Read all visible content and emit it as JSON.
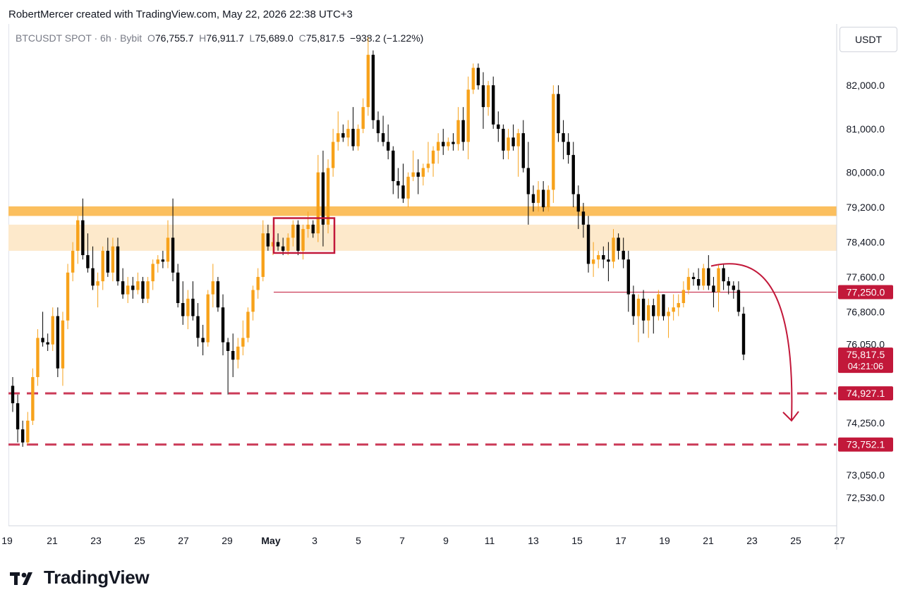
{
  "header": {
    "credit": "RobertMercer created with TradingView.com, May 22, 2026 22:38 UTC+3"
  },
  "symbol": {
    "name": "BTCUSDT SPOT · 6h · Bybit",
    "o_label": "O",
    "o": "76,755.7",
    "h_label": "H",
    "h": "76,911.7",
    "l_label": "L",
    "l": "75,689.0",
    "c_label": "C",
    "c": "75,817.5",
    "change": "−938.2 (−1.22%)"
  },
  "currency": "USDT",
  "brand": {
    "name": "TradingView",
    "icon": "tradingview-logo-icon"
  },
  "colors": {
    "up": "#f7a21b",
    "down": "#000000",
    "accent_red": "#c2183a",
    "zone_strong": "#fbbf5e",
    "zone_light": "#fde9cb"
  },
  "chart_data": {
    "type": "candlestick",
    "timeframe": "6h",
    "y_axis_ticks": [
      "82,000.0",
      "81,000.0",
      "80,000.0",
      "79,200.0",
      "78,400.0",
      "77,600.0",
      "76,800.0",
      "76,050.0",
      "74,250.0",
      "73,050.0",
      "72,530.0"
    ],
    "ylim": [
      72300,
      83500
    ],
    "x_axis_ticks": [
      "19",
      "21",
      "23",
      "25",
      "27",
      "29",
      "May",
      "3",
      "5",
      "7",
      "9",
      "11",
      "13",
      "15",
      "17",
      "19",
      "21",
      "23",
      "25",
      "27"
    ],
    "price_labels": [
      {
        "value": 77250.0,
        "text": "77,250.0",
        "style": "solid"
      },
      {
        "value": 74927.1,
        "text": "74,927.1",
        "style": "dashed"
      },
      {
        "value": 73752.1,
        "text": "73,752.1",
        "style": "dashed"
      }
    ],
    "current_price": {
      "value": 75817.5,
      "text": "75,817.5",
      "countdown": "04:21:06"
    },
    "zones": [
      {
        "from": 79000,
        "to": 79220,
        "type": "resistance-strong"
      },
      {
        "from": 78200,
        "to": 78800,
        "type": "resistance-light"
      }
    ],
    "highlight_box": {
      "from_x": "May 1",
      "to_x": "May 4",
      "from": 78150,
      "to": 78950
    },
    "candles": [
      {
        "o": 75100,
        "h": 75300,
        "l": 74500,
        "c": 74700
      },
      {
        "o": 74700,
        "h": 74900,
        "l": 73800,
        "c": 74100
      },
      {
        "o": 74100,
        "h": 74300,
        "l": 73700,
        "c": 73800
      },
      {
        "o": 73800,
        "h": 74500,
        "l": 73750,
        "c": 74300
      },
      {
        "o": 74300,
        "h": 75500,
        "l": 74200,
        "c": 75300
      },
      {
        "o": 75300,
        "h": 76400,
        "l": 75100,
        "c": 76200
      },
      {
        "o": 76200,
        "h": 76800,
        "l": 76000,
        "c": 76100
      },
      {
        "o": 76100,
        "h": 76300,
        "l": 75900,
        "c": 76050
      },
      {
        "o": 76050,
        "h": 76900,
        "l": 75900,
        "c": 76700
      },
      {
        "o": 76700,
        "h": 76900,
        "l": 75300,
        "c": 75500
      },
      {
        "o": 75500,
        "h": 76800,
        "l": 75100,
        "c": 76600
      },
      {
        "o": 76600,
        "h": 77900,
        "l": 76400,
        "c": 77700
      },
      {
        "o": 77700,
        "h": 78400,
        "l": 77500,
        "c": 78200
      },
      {
        "o": 78200,
        "h": 79000,
        "l": 77900,
        "c": 78900
      },
      {
        "o": 78900,
        "h": 79400,
        "l": 78000,
        "c": 78100
      },
      {
        "o": 78100,
        "h": 78600,
        "l": 77700,
        "c": 77800
      },
      {
        "o": 77800,
        "h": 78300,
        "l": 77300,
        "c": 77400
      },
      {
        "o": 77400,
        "h": 77700,
        "l": 76900,
        "c": 77500
      },
      {
        "o": 77500,
        "h": 78300,
        "l": 77300,
        "c": 78200
      },
      {
        "o": 78200,
        "h": 78500,
        "l": 77600,
        "c": 77700
      },
      {
        "o": 77700,
        "h": 78500,
        "l": 77500,
        "c": 78300
      },
      {
        "o": 78300,
        "h": 78500,
        "l": 77400,
        "c": 77500
      },
      {
        "o": 77500,
        "h": 77800,
        "l": 77100,
        "c": 77200
      },
      {
        "o": 77200,
        "h": 77600,
        "l": 77000,
        "c": 77400
      },
      {
        "o": 77400,
        "h": 77600,
        "l": 77100,
        "c": 77300
      },
      {
        "o": 77300,
        "h": 77700,
        "l": 77200,
        "c": 77500
      },
      {
        "o": 77500,
        "h": 77600,
        "l": 77000,
        "c": 77100
      },
      {
        "o": 77100,
        "h": 77600,
        "l": 77000,
        "c": 77500
      },
      {
        "o": 77500,
        "h": 78000,
        "l": 77300,
        "c": 77900
      },
      {
        "o": 77900,
        "h": 78100,
        "l": 77700,
        "c": 78000
      },
      {
        "o": 78000,
        "h": 78200,
        "l": 77800,
        "c": 77950
      },
      {
        "o": 77950,
        "h": 78900,
        "l": 77800,
        "c": 78500
      },
      {
        "o": 78500,
        "h": 79400,
        "l": 77500,
        "c": 77700
      },
      {
        "o": 77700,
        "h": 77900,
        "l": 76900,
        "c": 77000
      },
      {
        "o": 77000,
        "h": 77500,
        "l": 76500,
        "c": 76700
      },
      {
        "o": 76700,
        "h": 77300,
        "l": 76400,
        "c": 77100
      },
      {
        "o": 77100,
        "h": 77500,
        "l": 76600,
        "c": 76700
      },
      {
        "o": 76700,
        "h": 77000,
        "l": 76000,
        "c": 76200
      },
      {
        "o": 76200,
        "h": 76500,
        "l": 75800,
        "c": 76100
      },
      {
        "o": 76100,
        "h": 77300,
        "l": 76000,
        "c": 77200
      },
      {
        "o": 77200,
        "h": 77900,
        "l": 76900,
        "c": 77500
      },
      {
        "o": 77500,
        "h": 77600,
        "l": 76800,
        "c": 76900
      },
      {
        "o": 76900,
        "h": 77200,
        "l": 75800,
        "c": 76100
      },
      {
        "o": 76100,
        "h": 76200,
        "l": 74900,
        "c": 75900
      },
      {
        "o": 75900,
        "h": 76300,
        "l": 75300,
        "c": 75700
      },
      {
        "o": 75700,
        "h": 76200,
        "l": 75500,
        "c": 76000
      },
      {
        "o": 76000,
        "h": 76600,
        "l": 75800,
        "c": 76200
      },
      {
        "o": 76200,
        "h": 76900,
        "l": 76100,
        "c": 76800
      },
      {
        "o": 76800,
        "h": 77400,
        "l": 76600,
        "c": 77300
      },
      {
        "o": 77300,
        "h": 77800,
        "l": 77100,
        "c": 77600
      },
      {
        "o": 77600,
        "h": 78900,
        "l": 77500,
        "c": 78600
      },
      {
        "o": 78600,
        "h": 78800,
        "l": 78200,
        "c": 78300
      },
      {
        "o": 78300,
        "h": 78500,
        "l": 78100,
        "c": 78400
      },
      {
        "o": 78400,
        "h": 78600,
        "l": 78200,
        "c": 78300
      },
      {
        "o": 78300,
        "h": 78500,
        "l": 78100,
        "c": 78200
      },
      {
        "o": 78200,
        "h": 78600,
        "l": 78100,
        "c": 78500
      },
      {
        "o": 78500,
        "h": 78900,
        "l": 78300,
        "c": 78800
      },
      {
        "o": 78800,
        "h": 78900,
        "l": 78100,
        "c": 78200
      },
      {
        "o": 78200,
        "h": 78800,
        "l": 78000,
        "c": 78700
      },
      {
        "o": 78700,
        "h": 79100,
        "l": 78500,
        "c": 78800
      },
      {
        "o": 78800,
        "h": 78900,
        "l": 78500,
        "c": 78600
      },
      {
        "o": 78600,
        "h": 80400,
        "l": 78400,
        "c": 80000
      },
      {
        "o": 80000,
        "h": 80500,
        "l": 78300,
        "c": 78800
      },
      {
        "o": 78800,
        "h": 80300,
        "l": 78600,
        "c": 80100
      },
      {
        "o": 80100,
        "h": 81000,
        "l": 79900,
        "c": 80700
      },
      {
        "o": 80700,
        "h": 81400,
        "l": 80500,
        "c": 80900
      },
      {
        "o": 80900,
        "h": 81100,
        "l": 80700,
        "c": 80800
      },
      {
        "o": 80800,
        "h": 81200,
        "l": 80600,
        "c": 81000
      },
      {
        "o": 81000,
        "h": 81500,
        "l": 80500,
        "c": 80600
      },
      {
        "o": 80600,
        "h": 81100,
        "l": 80500,
        "c": 81000
      },
      {
        "o": 81000,
        "h": 81700,
        "l": 80900,
        "c": 81500
      },
      {
        "o": 81500,
        "h": 83100,
        "l": 81300,
        "c": 82700
      },
      {
        "o": 82700,
        "h": 82800,
        "l": 81000,
        "c": 81200
      },
      {
        "o": 81200,
        "h": 81400,
        "l": 80700,
        "c": 80900
      },
      {
        "o": 80900,
        "h": 81300,
        "l": 80600,
        "c": 80700
      },
      {
        "o": 80700,
        "h": 81100,
        "l": 80300,
        "c": 80500
      },
      {
        "o": 80500,
        "h": 80600,
        "l": 79500,
        "c": 79800
      },
      {
        "o": 79800,
        "h": 80100,
        "l": 79400,
        "c": 79700
      },
      {
        "o": 79700,
        "h": 80200,
        "l": 79300,
        "c": 79400
      },
      {
        "o": 79400,
        "h": 80000,
        "l": 79200,
        "c": 79900
      },
      {
        "o": 79900,
        "h": 80500,
        "l": 79800,
        "c": 80000
      },
      {
        "o": 80000,
        "h": 80300,
        "l": 79500,
        "c": 79900
      },
      {
        "o": 79900,
        "h": 80200,
        "l": 79700,
        "c": 80100
      },
      {
        "o": 80100,
        "h": 80700,
        "l": 80000,
        "c": 80200
      },
      {
        "o": 80200,
        "h": 80600,
        "l": 79900,
        "c": 80500
      },
      {
        "o": 80500,
        "h": 80900,
        "l": 80200,
        "c": 80700
      },
      {
        "o": 80700,
        "h": 81000,
        "l": 80400,
        "c": 80600
      },
      {
        "o": 80600,
        "h": 80800,
        "l": 80500,
        "c": 80700
      },
      {
        "o": 80700,
        "h": 80900,
        "l": 80500,
        "c": 80650
      },
      {
        "o": 80650,
        "h": 81500,
        "l": 80500,
        "c": 81200
      },
      {
        "o": 81200,
        "h": 81500,
        "l": 80500,
        "c": 80700
      },
      {
        "o": 80700,
        "h": 82200,
        "l": 80300,
        "c": 81900
      },
      {
        "o": 81900,
        "h": 82500,
        "l": 81800,
        "c": 82400
      },
      {
        "o": 82400,
        "h": 82500,
        "l": 81900,
        "c": 82000
      },
      {
        "o": 82000,
        "h": 82300,
        "l": 81000,
        "c": 81500
      },
      {
        "o": 81500,
        "h": 82100,
        "l": 81300,
        "c": 82000
      },
      {
        "o": 82000,
        "h": 82200,
        "l": 81000,
        "c": 81100
      },
      {
        "o": 81100,
        "h": 81400,
        "l": 80700,
        "c": 81000
      },
      {
        "o": 81000,
        "h": 81100,
        "l": 80300,
        "c": 80500
      },
      {
        "o": 80500,
        "h": 81000,
        "l": 80300,
        "c": 80800
      },
      {
        "o": 80800,
        "h": 81100,
        "l": 80500,
        "c": 80600
      },
      {
        "o": 80600,
        "h": 81000,
        "l": 79900,
        "c": 80900
      },
      {
        "o": 80900,
        "h": 81200,
        "l": 80000,
        "c": 80100
      },
      {
        "o": 80100,
        "h": 80700,
        "l": 78800,
        "c": 79500
      },
      {
        "o": 79500,
        "h": 79700,
        "l": 79100,
        "c": 79300
      },
      {
        "o": 79300,
        "h": 79800,
        "l": 79100,
        "c": 79600
      },
      {
        "o": 79600,
        "h": 79800,
        "l": 79100,
        "c": 79200
      },
      {
        "o": 79200,
        "h": 79700,
        "l": 79100,
        "c": 79600
      },
      {
        "o": 79600,
        "h": 82000,
        "l": 79300,
        "c": 81800
      },
      {
        "o": 81800,
        "h": 82000,
        "l": 80700,
        "c": 80900
      },
      {
        "o": 80900,
        "h": 81200,
        "l": 80300,
        "c": 80700
      },
      {
        "o": 80700,
        "h": 80900,
        "l": 80200,
        "c": 80400
      },
      {
        "o": 80400,
        "h": 80700,
        "l": 79200,
        "c": 79500
      },
      {
        "o": 79500,
        "h": 79700,
        "l": 78700,
        "c": 79100
      },
      {
        "o": 79100,
        "h": 79300,
        "l": 78500,
        "c": 78800
      },
      {
        "o": 78800,
        "h": 79000,
        "l": 77700,
        "c": 77900
      },
      {
        "o": 77900,
        "h": 78400,
        "l": 77600,
        "c": 78000
      },
      {
        "o": 78000,
        "h": 78200,
        "l": 77800,
        "c": 78100
      },
      {
        "o": 78100,
        "h": 78300,
        "l": 77800,
        "c": 78000
      },
      {
        "o": 78000,
        "h": 78400,
        "l": 77500,
        "c": 77950
      },
      {
        "o": 77950,
        "h": 78700,
        "l": 77800,
        "c": 78500
      },
      {
        "o": 78500,
        "h": 78600,
        "l": 78000,
        "c": 78200
      },
      {
        "o": 78200,
        "h": 78500,
        "l": 77800,
        "c": 78000
      },
      {
        "o": 78000,
        "h": 78200,
        "l": 76800,
        "c": 77200
      },
      {
        "o": 77200,
        "h": 77400,
        "l": 76500,
        "c": 76700
      },
      {
        "o": 76700,
        "h": 77200,
        "l": 76100,
        "c": 77100
      },
      {
        "o": 77100,
        "h": 77300,
        "l": 76300,
        "c": 76600
      },
      {
        "o": 76600,
        "h": 77100,
        "l": 76200,
        "c": 76950
      },
      {
        "o": 76950,
        "h": 77100,
        "l": 76300,
        "c": 76700
      },
      {
        "o": 76700,
        "h": 77300,
        "l": 76600,
        "c": 77200
      },
      {
        "o": 77200,
        "h": 77200,
        "l": 76600,
        "c": 76700
      },
      {
        "o": 76700,
        "h": 76900,
        "l": 76200,
        "c": 76800
      },
      {
        "o": 76800,
        "h": 77200,
        "l": 76600,
        "c": 76900
      },
      {
        "o": 76900,
        "h": 77200,
        "l": 76700,
        "c": 77000
      },
      {
        "o": 77000,
        "h": 77500,
        "l": 76900,
        "c": 77300
      },
      {
        "o": 77300,
        "h": 77800,
        "l": 77200,
        "c": 77600
      },
      {
        "o": 77600,
        "h": 77700,
        "l": 77400,
        "c": 77550
      },
      {
        "o": 77550,
        "h": 77800,
        "l": 77300,
        "c": 77400
      },
      {
        "o": 77400,
        "h": 77900,
        "l": 77300,
        "c": 77800
      },
      {
        "o": 77800,
        "h": 78100,
        "l": 77300,
        "c": 77400
      },
      {
        "o": 77400,
        "h": 77600,
        "l": 76900,
        "c": 77250
      },
      {
        "o": 77250,
        "h": 77900,
        "l": 76800,
        "c": 77800
      },
      {
        "o": 77800,
        "h": 77900,
        "l": 77300,
        "c": 77500
      },
      {
        "o": 77500,
        "h": 77600,
        "l": 77200,
        "c": 77400
      },
      {
        "o": 77400,
        "h": 77500,
        "l": 77100,
        "c": 77300
      },
      {
        "o": 77300,
        "h": 77500,
        "l": 76700,
        "c": 76800
      },
      {
        "o": 76755.7,
        "h": 76911.7,
        "l": 75689.0,
        "c": 75817.5
      }
    ]
  }
}
